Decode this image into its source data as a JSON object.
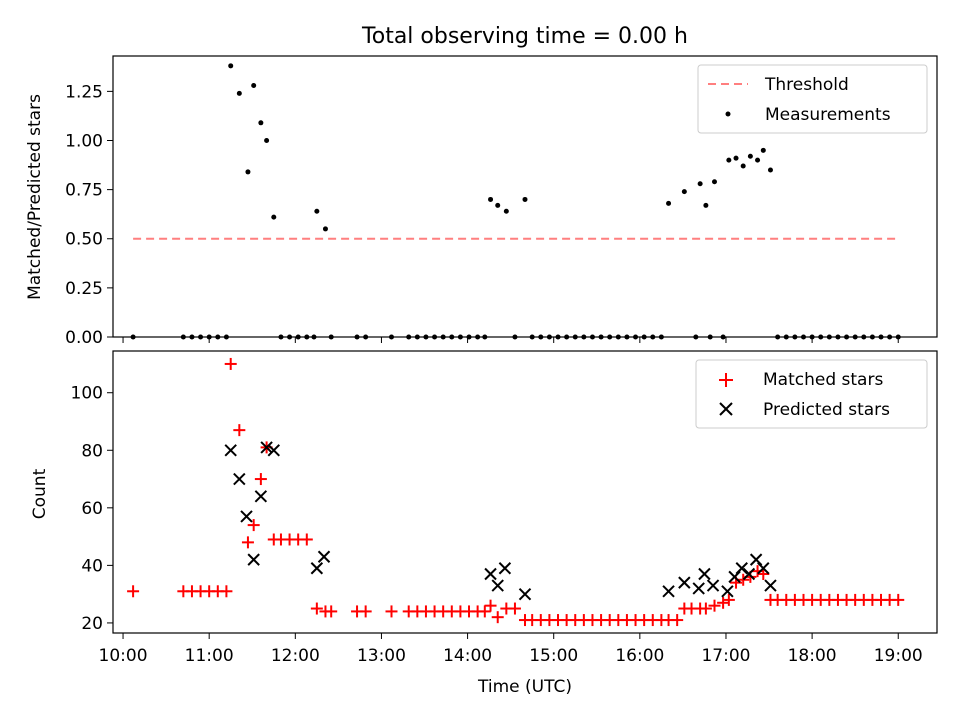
{
  "title": "Total observing time = 0.00 h",
  "chart_data": [
    {
      "type": "scatter",
      "ylabel": "Matched/Predicted stars",
      "xlabel": "",
      "xlim": [
        "09:53",
        "19:27"
      ],
      "ylim": [
        0,
        1.43
      ],
      "yticks": [
        "0.00",
        "0.25",
        "0.50",
        "0.75",
        "1.00",
        "1.25"
      ],
      "grid": false,
      "legend_position": "top-right",
      "threshold": {
        "name": "Threshold",
        "value": 0.5,
        "x": [
          "10:07",
          "19:00"
        ],
        "color": "#ff7f7f",
        "style": "dashed"
      },
      "series": [
        {
          "name": "Measurements",
          "color": "#000000",
          "marker": "dot",
          "points": [
            [
              "10:07",
              0
            ],
            [
              "10:42",
              0
            ],
            [
              "10:48",
              0
            ],
            [
              "10:54",
              0
            ],
            [
              "11:00",
              0
            ],
            [
              "11:06",
              0
            ],
            [
              "11:12",
              0
            ],
            [
              "11:15",
              1.38
            ],
            [
              "11:21",
              1.24
            ],
            [
              "11:27",
              0.84
            ],
            [
              "11:31",
              1.28
            ],
            [
              "11:36",
              1.09
            ],
            [
              "11:40",
              1.0
            ],
            [
              "11:45",
              0.61
            ],
            [
              "11:50",
              0
            ],
            [
              "11:56",
              0
            ],
            [
              "12:02",
              0
            ],
            [
              "12:08",
              0
            ],
            [
              "12:13",
              0
            ],
            [
              "12:15",
              0.64
            ],
            [
              "12:21",
              0.55
            ],
            [
              "12:25",
              0
            ],
            [
              "12:43",
              0
            ],
            [
              "12:49",
              0
            ],
            [
              "13:07",
              0
            ],
            [
              "13:19",
              0
            ],
            [
              "13:25",
              0
            ],
            [
              "13:31",
              0
            ],
            [
              "13:37",
              0
            ],
            [
              "13:43",
              0
            ],
            [
              "13:49",
              0
            ],
            [
              "13:55",
              0
            ],
            [
              "14:01",
              0
            ],
            [
              "14:07",
              0
            ],
            [
              "14:12",
              0
            ],
            [
              "14:16",
              0.7
            ],
            [
              "14:21",
              0.67
            ],
            [
              "14:27",
              0.64
            ],
            [
              "14:33",
              0
            ],
            [
              "14:40",
              0.7
            ],
            [
              "14:45",
              0
            ],
            [
              "14:51",
              0
            ],
            [
              "14:57",
              0
            ],
            [
              "15:03",
              0
            ],
            [
              "15:09",
              0
            ],
            [
              "15:15",
              0
            ],
            [
              "15:21",
              0
            ],
            [
              "15:27",
              0
            ],
            [
              "15:33",
              0
            ],
            [
              "15:39",
              0
            ],
            [
              "15:45",
              0
            ],
            [
              "15:51",
              0
            ],
            [
              "15:57",
              0
            ],
            [
              "16:03",
              0
            ],
            [
              "16:09",
              0
            ],
            [
              "16:15",
              0
            ],
            [
              "16:20",
              0.68
            ],
            [
              "16:31",
              0.74
            ],
            [
              "16:39",
              0
            ],
            [
              "16:42",
              0.78
            ],
            [
              "16:46",
              0.67
            ],
            [
              "16:49",
              0
            ],
            [
              "16:52",
              0.79
            ],
            [
              "16:58",
              0
            ],
            [
              "17:02",
              0.9
            ],
            [
              "17:07",
              0.91
            ],
            [
              "17:12",
              0.87
            ],
            [
              "17:17",
              0.92
            ],
            [
              "17:22",
              0.9
            ],
            [
              "17:26",
              0.95
            ],
            [
              "17:31",
              0.85
            ],
            [
              "17:36",
              0
            ],
            [
              "17:42",
              0
            ],
            [
              "17:48",
              0
            ],
            [
              "17:54",
              0
            ],
            [
              "18:00",
              0
            ],
            [
              "18:06",
              0
            ],
            [
              "18:12",
              0
            ],
            [
              "18:18",
              0
            ],
            [
              "18:24",
              0
            ],
            [
              "18:30",
              0
            ],
            [
              "18:36",
              0
            ],
            [
              "18:42",
              0
            ],
            [
              "18:48",
              0
            ],
            [
              "18:54",
              0
            ],
            [
              "19:00",
              0
            ]
          ]
        }
      ]
    },
    {
      "type": "scatter",
      "xlabel": "Time (UTC)",
      "ylabel": "Count",
      "xlim": [
        "09:53",
        "19:27"
      ],
      "ylim": [
        16.5,
        114.5
      ],
      "xticks": [
        "10:00",
        "11:00",
        "12:00",
        "13:00",
        "14:00",
        "15:00",
        "16:00",
        "17:00",
        "18:00",
        "19:00"
      ],
      "yticks": [
        "20",
        "40",
        "60",
        "80",
        "100"
      ],
      "grid": false,
      "legend_position": "top-right",
      "series": [
        {
          "name": "Matched stars",
          "color": "#ff0000",
          "marker": "plus",
          "points": [
            [
              "10:07",
              31
            ],
            [
              "10:42",
              31
            ],
            [
              "10:48",
              31
            ],
            [
              "10:54",
              31
            ],
            [
              "11:00",
              31
            ],
            [
              "11:06",
              31
            ],
            [
              "11:12",
              31
            ],
            [
              "11:15",
              110
            ],
            [
              "11:21",
              87
            ],
            [
              "11:27",
              48
            ],
            [
              "11:31",
              54
            ],
            [
              "11:36",
              70
            ],
            [
              "11:40",
              81
            ],
            [
              "11:45",
              49
            ],
            [
              "11:50",
              49
            ],
            [
              "11:56",
              49
            ],
            [
              "12:02",
              49
            ],
            [
              "12:08",
              49
            ],
            [
              "12:15",
              25
            ],
            [
              "12:21",
              24
            ],
            [
              "12:25",
              24
            ],
            [
              "12:43",
              24
            ],
            [
              "12:49",
              24
            ],
            [
              "13:07",
              24
            ],
            [
              "13:19",
              24
            ],
            [
              "13:25",
              24
            ],
            [
              "13:31",
              24
            ],
            [
              "13:37",
              24
            ],
            [
              "13:43",
              24
            ],
            [
              "13:49",
              24
            ],
            [
              "13:55",
              24
            ],
            [
              "14:01",
              24
            ],
            [
              "14:07",
              24
            ],
            [
              "14:12",
              24
            ],
            [
              "14:16",
              26
            ],
            [
              "14:21",
              22
            ],
            [
              "14:27",
              25
            ],
            [
              "14:33",
              25
            ],
            [
              "14:40",
              21
            ],
            [
              "14:45",
              21
            ],
            [
              "14:51",
              21
            ],
            [
              "14:57",
              21
            ],
            [
              "15:03",
              21
            ],
            [
              "15:09",
              21
            ],
            [
              "15:15",
              21
            ],
            [
              "15:21",
              21
            ],
            [
              "15:27",
              21
            ],
            [
              "15:33",
              21
            ],
            [
              "15:39",
              21
            ],
            [
              "15:45",
              21
            ],
            [
              "15:51",
              21
            ],
            [
              "15:57",
              21
            ],
            [
              "16:03",
              21
            ],
            [
              "16:09",
              21
            ],
            [
              "16:15",
              21
            ],
            [
              "16:20",
              21
            ],
            [
              "16:26",
              21
            ],
            [
              "16:31",
              25
            ],
            [
              "16:36",
              25
            ],
            [
              "16:42",
              25
            ],
            [
              "16:46",
              25
            ],
            [
              "16:52",
              26
            ],
            [
              "16:58",
              27
            ],
            [
              "17:02",
              28
            ],
            [
              "17:07",
              34
            ],
            [
              "17:12",
              35
            ],
            [
              "17:17",
              36
            ],
            [
              "17:22",
              38
            ],
            [
              "17:26",
              37
            ],
            [
              "17:31",
              28
            ],
            [
              "17:36",
              28
            ],
            [
              "17:42",
              28
            ],
            [
              "17:48",
              28
            ],
            [
              "17:54",
              28
            ],
            [
              "18:00",
              28
            ],
            [
              "18:06",
              28
            ],
            [
              "18:12",
              28
            ],
            [
              "18:18",
              28
            ],
            [
              "18:24",
              28
            ],
            [
              "18:30",
              28
            ],
            [
              "18:36",
              28
            ],
            [
              "18:42",
              28
            ],
            [
              "18:48",
              28
            ],
            [
              "18:54",
              28
            ],
            [
              "19:00",
              28
            ]
          ]
        },
        {
          "name": "Predicted stars",
          "color": "#000000",
          "marker": "x",
          "points": [
            [
              "11:15",
              80
            ],
            [
              "11:21",
              70
            ],
            [
              "11:26",
              57
            ],
            [
              "11:31",
              42
            ],
            [
              "11:36",
              64
            ],
            [
              "11:40",
              81
            ],
            [
              "11:45",
              80
            ],
            [
              "12:15",
              39
            ],
            [
              "12:20",
              43
            ],
            [
              "14:16",
              37
            ],
            [
              "14:21",
              33
            ],
            [
              "14:26",
              39
            ],
            [
              "14:40",
              30
            ],
            [
              "16:20",
              31
            ],
            [
              "16:31",
              34
            ],
            [
              "16:41",
              32
            ],
            [
              "16:45",
              37
            ],
            [
              "16:51",
              33
            ],
            [
              "17:01",
              31
            ],
            [
              "17:06",
              36
            ],
            [
              "17:11",
              39
            ],
            [
              "17:16",
              37
            ],
            [
              "17:21",
              42
            ],
            [
              "17:26",
              39
            ],
            [
              "17:31",
              33
            ]
          ]
        }
      ]
    }
  ]
}
